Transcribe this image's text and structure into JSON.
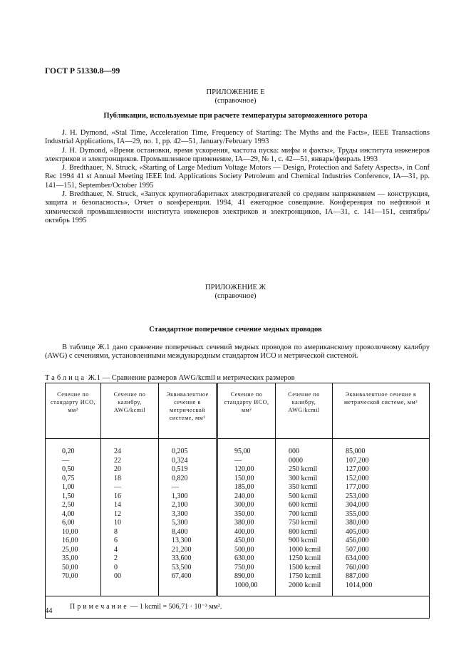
{
  "header": "ГОСТ Р 51330.8—99",
  "appendix_e": {
    "title": "ПРИЛОЖЕНИЕ Е",
    "subtitle": "(справочное)",
    "heading": "Публикации, используемые при расчете температуры заторможенного ротора",
    "references": [
      "J. H. Dymond, «Stal Time, Acceleration Time, Frequency of Starting: The Myths and the Facts», IEEE Transactions Industrial Applications, IA—29, no. 1, pp. 42—51, January/February 1993",
      "J. H. Dymond, «Время остановки, время ускорения, частота пуска: мифы и факты», Труды института инженеров электриков и электронщиков. Промышленное применение, IA—29, № 1, с. 42—51, январь/февраль 1993",
      "J. Bredthauer, N. Struck, «Starting of Large Medium Voltage Motors — Design, Protection and Safety Aspects», in Conf Rec 1994 41 st Annual Meeting IEEE Ind. Applications Society Petroleum and Chemical Industries Conference, IA—31, pp. 141—151, September/October 1995",
      "J. Bredthauer, N. Struck, «Запуск крупногабаритных электродвигателей со средним напряжением — конструкция, защита и безопасность», Отчет о конференции. 1994, 41 ежегодное совещание. Конференция по нефтяной и химической промышленности института инженеров электриков и электронщиков, IA—31, с. 141—151, сентябрь/октябрь 1995"
    ]
  },
  "appendix_zh": {
    "title": "ПРИЛОЖЕНИЕ Ж",
    "subtitle": "(справочное)",
    "heading": "Стандартное поперечное сечение медных проводов",
    "paragraph": "В таблице Ж.1 дано сравнение поперечных сечений медных проводов по американскому проволочному калибру (AWG) с сечениями, установленными международным стандартом ИСО и метрической системой.",
    "table_caption_prefix": "Таблица",
    "table_caption": "Ж.1 — Сравнение размеров AWG/kcmil и метрических размеров",
    "table": {
      "headers": [
        "Сечение по стандарту ИСО, мм²",
        "Сечение по калибру, AWG/kcmil",
        "Эквивалентное сечение в метрической системе, мм²",
        "Сечение по стандарту ИСО, мм²",
        "Сечение по калибру, AWG/kcmil",
        "Эквивалентное сечение в метрической системе, мм²"
      ],
      "columns": [
        [
          "0,20",
          "—",
          "0,50",
          "0,75",
          "1,00",
          "1,50",
          "2,50",
          "4,00",
          "6,00",
          "10,00",
          "16,00",
          "25,00",
          "35,00",
          "50,00",
          "70,00"
        ],
        [
          "24",
          "22",
          "20",
          "18",
          "—",
          "16",
          "14",
          "12",
          "10",
          "8",
          "6",
          "4",
          "2",
          "0",
          "00"
        ],
        [
          "0,205",
          "0,324",
          "0,519",
          "0,820",
          "—",
          "1,300",
          "2,100",
          "3,300",
          "5,300",
          "8,400",
          "13,300",
          "21,200",
          "33,600",
          "53,500",
          "67,400"
        ],
        [
          "95,00",
          "—",
          "120,00",
          "150,00",
          "185,00",
          "240,00",
          "300,00",
          "350,00",
          "380,00",
          "400,00",
          "450,00",
          "500,00",
          "630,00",
          "750,00",
          "890,00",
          "1000,00"
        ],
        [
          "000",
          "0000",
          "250 kcmil",
          "300 kcmil",
          "350 kcmil",
          "500 kcmil",
          "600 kcmil",
          "700 kcmil",
          "750 kcmil",
          "800 kcmil",
          "900 kcmil",
          "1000 kcmil",
          "1250 kcmil",
          "1500 kcmil",
          "1750 kcmil",
          "2000 kcmil"
        ],
        [
          "85,000",
          "107,200",
          "127,000",
          "152,000",
          "177,000",
          "253,000",
          "304,000",
          "355,000",
          "380,000",
          "405,000",
          "456,000",
          "507,000",
          "634,000",
          "760,000",
          "887,000",
          "1014,000"
        ]
      ],
      "note_prefix": "Примечание",
      "note": "— 1 kcmil = 506,71 · 10⁻³ мм²."
    }
  },
  "page_number": "44"
}
